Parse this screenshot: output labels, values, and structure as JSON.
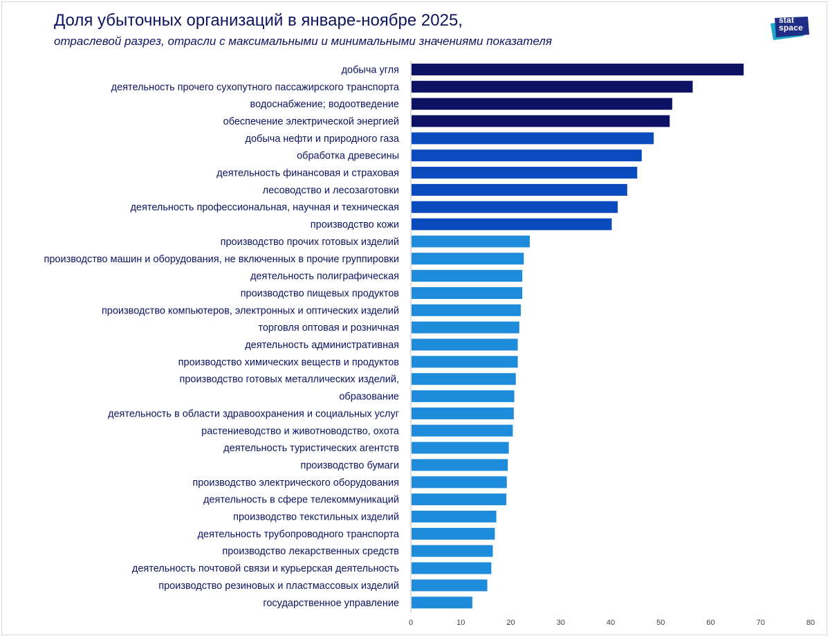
{
  "title": "Доля убыточных организаций в январе-ноябре 2025,",
  "subtitle": "отраслевой разрез, отрасли с максимальными и минимальными значениями показателя",
  "logo": {
    "line1": "stat",
    "line2": "space"
  },
  "colors": {
    "dark": "#0d1163",
    "mid": "#0b49bf",
    "light": "#1e8bdb",
    "title": "#0d1460"
  },
  "chart_data": {
    "type": "bar",
    "orientation": "horizontal",
    "xlim": [
      0,
      80
    ],
    "xticks": [
      0,
      10,
      20,
      30,
      40,
      50,
      60,
      70,
      80
    ],
    "categories": [
      "добыча угля",
      "деятельность прочего сухопутного пассажирского транспорта",
      "водоснабжение; водоотведение",
      "обеспечение электрической энергией",
      "добыча нефти и природного газа",
      "обработка древесины",
      "деятельность финансовая и страховая",
      "лесоводство и лесозаготовки",
      "деятельность профессиональная, научная и техническая",
      "производство кожи",
      "производство прочих готовых изделий",
      "производство машин и оборудования, не включенных в прочие группировки",
      "деятельность полиграфическая",
      "производство пищевых продуктов",
      "производство компьютеров, электронных и оптических изделий",
      "торговля оптовая и розничная",
      "деятельность административная",
      "производство химических веществ и продуктов",
      "производство готовых металлических изделий,",
      "образование",
      "деятельность в области здравоохранения и социальных услуг",
      "растениеводство и животноводство, охота",
      "деятельность туристических агентств",
      "производство бумаги",
      "производство электрического оборудования",
      "деятельность в сфере телекоммуникаций",
      "производство текстильных изделий",
      "деятельность трубопроводного транспорта",
      "производство лекарственных средств",
      "деятельность почтовой связи и курьерская деятельность",
      "производство резиновых и пластмассовых изделий",
      "государственное управление"
    ],
    "values": [
      66.6,
      56.4,
      52.3,
      51.8,
      48.6,
      46.2,
      45.3,
      43.3,
      41.4,
      40.2,
      23.8,
      22.6,
      22.3,
      22.3,
      22.0,
      21.7,
      21.4,
      21.4,
      21.0,
      20.7,
      20.6,
      20.4,
      19.6,
      19.4,
      19.2,
      19.1,
      17.1,
      16.8,
      16.4,
      16.1,
      15.3,
      12.3
    ],
    "bar_groups": [
      "dark",
      "dark",
      "dark",
      "dark",
      "mid",
      "mid",
      "mid",
      "mid",
      "mid",
      "mid",
      "light",
      "light",
      "light",
      "light",
      "light",
      "light",
      "light",
      "light",
      "light",
      "light",
      "light",
      "light",
      "light",
      "light",
      "light",
      "light",
      "light",
      "light",
      "light",
      "light",
      "light",
      "light"
    ]
  }
}
